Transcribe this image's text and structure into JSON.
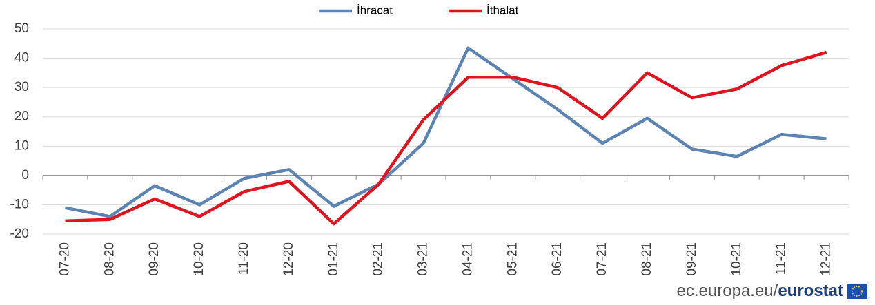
{
  "chart_data": {
    "type": "line",
    "categories": [
      "07-20",
      "08-20",
      "09-20",
      "10-20",
      "11-20",
      "12-20",
      "01-21",
      "02-21",
      "03-21",
      "04-21",
      "05-21",
      "06-21",
      "07-21",
      "08-21",
      "09-21",
      "10-21",
      "11-21",
      "12-21"
    ],
    "series": [
      {
        "name": "İhracat",
        "color": "#5b84b4",
        "values": [
          -11,
          -14,
          -3.5,
          -10,
          -1,
          2,
          -10.5,
          -3,
          11,
          43.5,
          33,
          22.5,
          11,
          19.5,
          9,
          6.5,
          14,
          12.5
        ]
      },
      {
        "name": "İthalat",
        "color": "#e0141e",
        "values": [
          -15.5,
          -15,
          -8,
          -14,
          -5.5,
          -2,
          -16.5,
          -3,
          19,
          33.5,
          33.5,
          30,
          19.5,
          35,
          26.5,
          29.5,
          37.5,
          42
        ]
      }
    ],
    "ylim": [
      -20,
      50
    ],
    "yticks": [
      -20,
      -10,
      0,
      10,
      20,
      30,
      40,
      50
    ],
    "grid": true,
    "legend": "top"
  },
  "footer": {
    "site": "ec.europa.eu/",
    "brand": "eurostat"
  }
}
